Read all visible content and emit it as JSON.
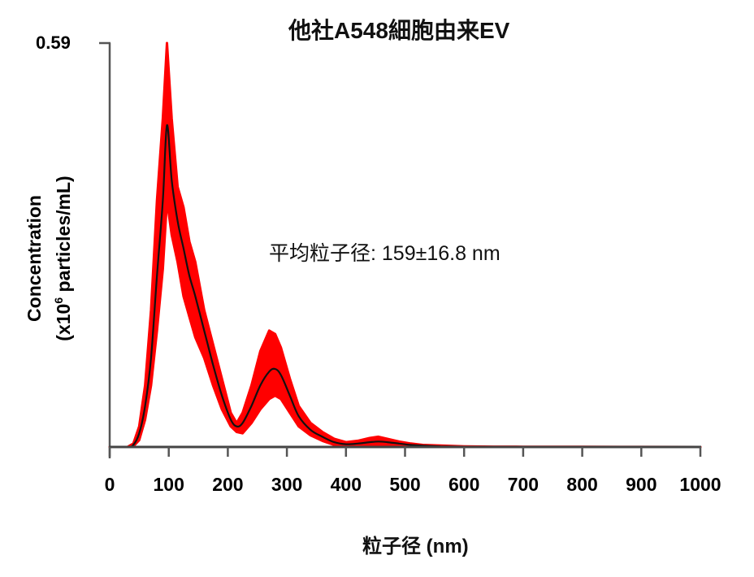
{
  "chart_data": {
    "type": "line",
    "title": "他社A548細胞由来EV",
    "xlabel": "粒子径 (nm)",
    "ylabel_line1": "Concentration",
    "ylabel_line2_prefix": "(x10",
    "ylabel_line2_sup": "6",
    "ylabel_line2_suffix": " particles/mL)",
    "ylabel": "Concentration (x10^6 particles/mL)",
    "y_top_label": "0.59",
    "xlim": [
      0,
      1000
    ],
    "ylim": [
      0,
      0.59
    ],
    "x_ticks": [
      "0",
      "100",
      "200",
      "300",
      "400",
      "500",
      "600",
      "700",
      "800",
      "900",
      "1000"
    ],
    "annotation": "平均粒子径: 159±16.8 nm",
    "grid": false,
    "legend": null,
    "colors": {
      "mean_line": "#111111",
      "error_band": "#ff0000",
      "axis": "#555555"
    },
    "series": [
      {
        "name": "mean",
        "x": [
          0,
          30,
          40,
          50,
          60,
          70,
          80,
          90,
          97,
          105,
          115,
          125,
          135,
          145,
          160,
          175,
          190,
          205,
          215,
          225,
          240,
          255,
          270,
          280,
          290,
          305,
          320,
          340,
          360,
          380,
          400,
          420,
          440,
          455,
          470,
          490,
          510,
          530,
          560,
          600,
          650,
          700,
          800,
          900,
          1000
        ],
        "values": [
          0,
          0,
          0.003,
          0.02,
          0.06,
          0.13,
          0.25,
          0.36,
          0.47,
          0.39,
          0.33,
          0.29,
          0.25,
          0.22,
          0.17,
          0.12,
          0.075,
          0.04,
          0.03,
          0.035,
          0.06,
          0.09,
          0.11,
          0.114,
          0.105,
          0.075,
          0.045,
          0.025,
          0.015,
          0.007,
          0.004,
          0.005,
          0.007,
          0.008,
          0.007,
          0.005,
          0.003,
          0.002,
          0.001,
          0.0005,
          0.0003,
          0.0002,
          0.0001,
          0.0001,
          0
        ]
      },
      {
        "name": "error_upper",
        "x": [
          0,
          30,
          40,
          50,
          60,
          70,
          80,
          90,
          97,
          105,
          115,
          125,
          135,
          145,
          160,
          175,
          190,
          205,
          215,
          225,
          240,
          255,
          270,
          280,
          290,
          305,
          320,
          340,
          360,
          380,
          400,
          420,
          440,
          455,
          470,
          490,
          510,
          530,
          560,
          600,
          650,
          700,
          800,
          900,
          1000
        ],
        "values": [
          0,
          0,
          0.005,
          0.03,
          0.09,
          0.2,
          0.36,
          0.48,
          0.59,
          0.48,
          0.38,
          0.35,
          0.3,
          0.27,
          0.2,
          0.15,
          0.1,
          0.05,
          0.035,
          0.05,
          0.09,
          0.14,
          0.17,
          0.165,
          0.145,
          0.1,
          0.06,
          0.035,
          0.022,
          0.012,
          0.007,
          0.009,
          0.013,
          0.015,
          0.012,
          0.008,
          0.005,
          0.003,
          0.002,
          0.001,
          0.0005,
          0.0003,
          0.0002,
          0.0001,
          0
        ]
      },
      {
        "name": "error_lower",
        "x": [
          0,
          30,
          40,
          50,
          60,
          70,
          80,
          90,
          97,
          105,
          115,
          125,
          135,
          145,
          160,
          175,
          190,
          205,
          215,
          225,
          240,
          255,
          270,
          280,
          290,
          305,
          320,
          340,
          360,
          380,
          400,
          420,
          440,
          455,
          470,
          490,
          510,
          530,
          560,
          600,
          650,
          700,
          800,
          900,
          1000
        ],
        "values": [
          0,
          0,
          0.001,
          0.01,
          0.04,
          0.09,
          0.17,
          0.26,
          0.36,
          0.31,
          0.27,
          0.22,
          0.19,
          0.16,
          0.13,
          0.09,
          0.055,
          0.03,
          0.022,
          0.02,
          0.035,
          0.055,
          0.07,
          0.075,
          0.07,
          0.05,
          0.03,
          0.017,
          0.009,
          0.003,
          0.001,
          0.002,
          0.003,
          0.003,
          0.003,
          0.002,
          0.001,
          0.001,
          0.0005,
          0.0002,
          0.0001,
          0.0001,
          0,
          0,
          0
        ]
      }
    ]
  }
}
